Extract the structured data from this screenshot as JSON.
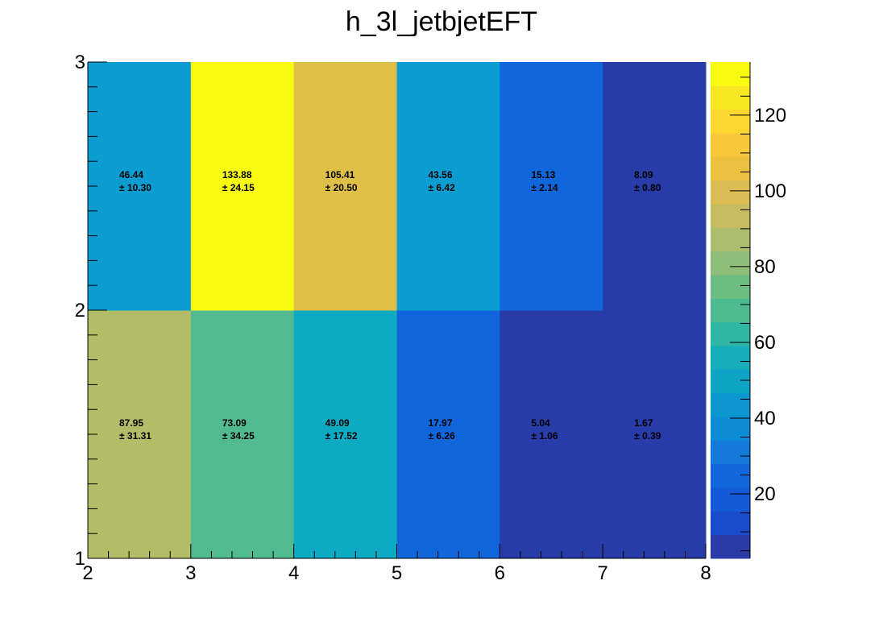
{
  "chart_data": {
    "type": "heatmap",
    "title": "h_3l_jetbjetEFT",
    "xlabel": "",
    "ylabel": "",
    "xlim": [
      2,
      8
    ],
    "ylim": [
      1,
      3
    ],
    "x_ticks": [
      "2",
      "3",
      "4",
      "5",
      "6",
      "7",
      "8"
    ],
    "y_ticks": [
      "1",
      "2",
      "3"
    ],
    "zlim": [
      3,
      134
    ],
    "colorbar_ticks": [
      "20",
      "40",
      "60",
      "80",
      "100",
      "120"
    ],
    "colorbar_tick_values": [
      20,
      40,
      60,
      80,
      100,
      120
    ],
    "palette": [
      "#2a3ba9",
      "#1b4bcd",
      "#1459d8",
      "#1367dc",
      "#137ada",
      "#0c8bd7",
      "#0b96d2",
      "#0ea4c6",
      "#16aebb",
      "#2fb6a4",
      "#4cbc90",
      "#6dbd83",
      "#8ebe7a",
      "#acbe6d",
      "#c7bb62",
      "#dcbd55",
      "#ebc13f",
      "#f6c83a",
      "#fbd72f",
      "#f8e824",
      "#f8fb10"
    ],
    "cells": [
      {
        "x": 2,
        "y": 1,
        "value": 87.95,
        "label": "87.95",
        "error": "± 31.31",
        "color": "#b3bc66"
      },
      {
        "x": 3,
        "y": 1,
        "value": 73.09,
        "label": "73.09",
        "error": "± 34.25",
        "color": "#52ba91"
      },
      {
        "x": 4,
        "y": 1,
        "value": 49.09,
        "label": "49.09",
        "error": "± 17.52",
        "color": "#0daac4"
      },
      {
        "x": 5,
        "y": 1,
        "value": 17.97,
        "label": "17.97",
        "error": "± 6.26",
        "color": "#1166dc"
      },
      {
        "x": 6,
        "y": 1,
        "value": 5.04,
        "label": "5.04",
        "error": "± 1.06",
        "color": "#283ca9"
      },
      {
        "x": 7,
        "y": 1,
        "value": 1.67,
        "label": "1.67",
        "error": "± 0.39",
        "color": "#283ca9"
      },
      {
        "x": 2,
        "y": 2,
        "value": 46.44,
        "label": "46.44",
        "error": "± 10.30",
        "color": "#0b9dd2"
      },
      {
        "x": 3,
        "y": 2,
        "value": 133.88,
        "label": "133.88",
        "error": "± 24.15",
        "color": "#f8fb10"
      },
      {
        "x": 4,
        "y": 2,
        "value": 105.41,
        "label": "105.41",
        "error": "± 20.50",
        "color": "#e0bf48"
      },
      {
        "x": 5,
        "y": 2,
        "value": 43.56,
        "label": "43.56",
        "error": "± 6.42",
        "color": "#0b9dd2"
      },
      {
        "x": 6,
        "y": 2,
        "value": 15.13,
        "label": "15.13",
        "error": "± 2.14",
        "color": "#1166dc"
      },
      {
        "x": 7,
        "y": 2,
        "value": 8.09,
        "label": "8.09",
        "error": "± 0.80",
        "color": "#283ca9"
      }
    ]
  }
}
